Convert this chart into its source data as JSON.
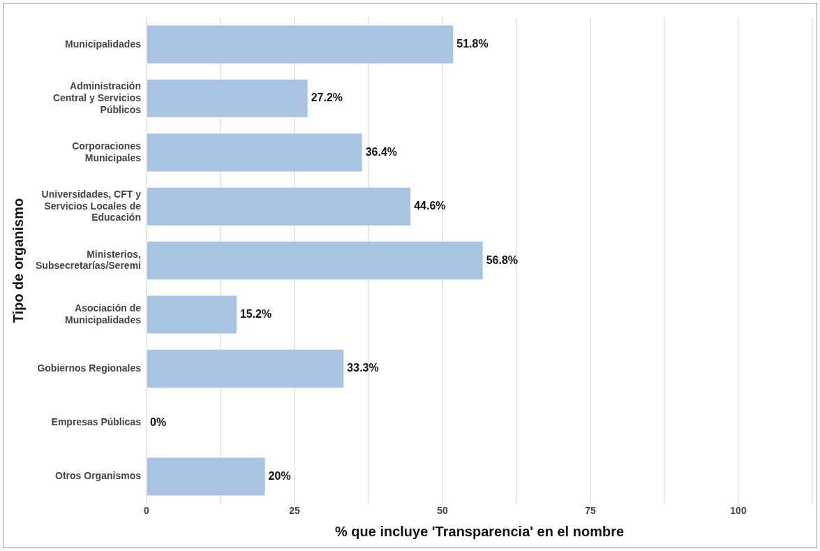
{
  "chart_data": {
    "type": "bar",
    "orientation": "horizontal",
    "xlabel": "% que incluye 'Transparencia' en el nombre",
    "ylabel": "Tipo de organismo",
    "categories": [
      "Municipalidades",
      "Administración\nCentral y Servicios\nPúblicos",
      "Corporaciones\nMunicipales",
      "Universidades, CFT y\nServicios Locales de\nEducación",
      "Ministerios,\nSubsecretarías/Seremi",
      "Asociación de\nMunicipalidades",
      "Gobiernos Regionales",
      "Empresas Públicas",
      "Otros Organismos"
    ],
    "values": [
      51.8,
      27.2,
      36.4,
      44.6,
      56.8,
      15.2,
      33.3,
      0,
      20
    ],
    "value_labels": [
      "51.8%",
      "27.2%",
      "36.4%",
      "44.6%",
      "56.8%",
      "15.2%",
      "33.3%",
      "0%",
      "20%"
    ],
    "color": "#a9c4e2",
    "xlim": [
      0,
      112.5
    ],
    "xticks": [
      0,
      {
        "value": 12.5,
        "label": null
      },
      25,
      {
        "value": 37.5,
        "label": null
      },
      50,
      {
        "value": 62.5,
        "label": null
      },
      75,
      {
        "value": 87.5,
        "label": null
      },
      100,
      {
        "value": 112.5,
        "label": null
      }
    ],
    "grid": "x"
  }
}
